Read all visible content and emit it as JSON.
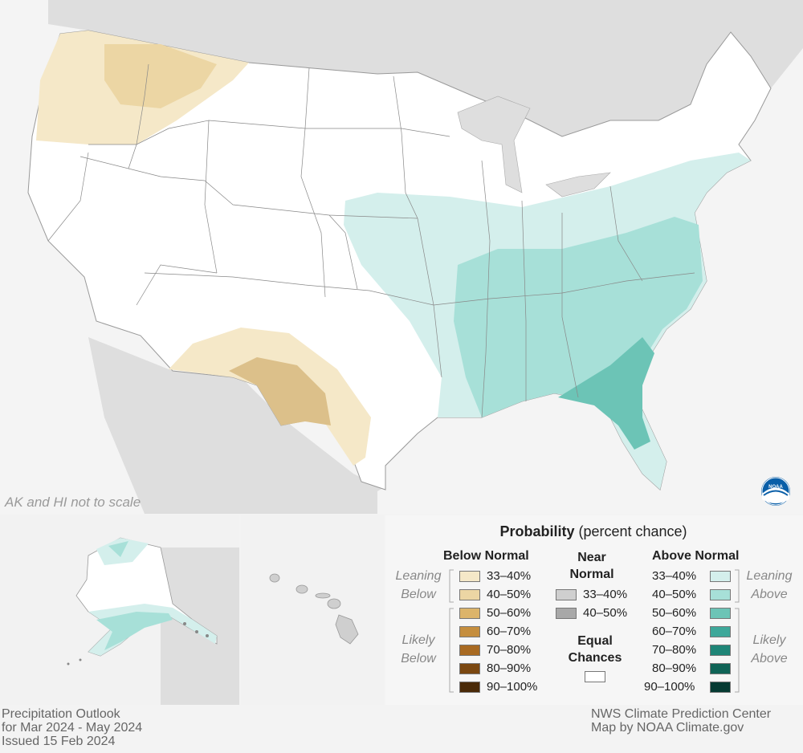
{
  "map": {
    "inset_note": "AK and HI not to scale",
    "logo_text": "NOAA"
  },
  "legend": {
    "title_bold": "Probability",
    "title_rest": " (percent chance)",
    "below": {
      "header": "Below Normal",
      "leaning_label": [
        "Leaning",
        "Below"
      ],
      "likely_label": [
        "Likely",
        "Below"
      ],
      "items": [
        {
          "label": "33–40%",
          "color": "#f5e8c8"
        },
        {
          "label": "40–50%",
          "color": "#ecd6a4"
        },
        {
          "label": "50–60%",
          "color": "#dcb46a"
        },
        {
          "label": "60–70%",
          "color": "#c58e3e"
        },
        {
          "label": "70–80%",
          "color": "#a86a22"
        },
        {
          "label": "80–90%",
          "color": "#7a4710"
        },
        {
          "label": "90–100%",
          "color": "#4a2a08"
        }
      ]
    },
    "near": {
      "header": [
        "Near",
        "Normal"
      ],
      "items": [
        {
          "label": "33–40%",
          "color": "#cfcfcf"
        },
        {
          "label": "40–50%",
          "color": "#a8a8a8"
        }
      ]
    },
    "equal": {
      "header": [
        "Equal",
        "Chances"
      ],
      "color": "#ffffff"
    },
    "above": {
      "header": "Above Normal",
      "leaning_label": [
        "Leaning",
        "Above"
      ],
      "likely_label": [
        "Likely",
        "Above"
      ],
      "items": [
        {
          "label": "33–40%",
          "color": "#d4efec"
        },
        {
          "label": "40–50%",
          "color": "#a7e0d8"
        },
        {
          "label": "50–60%",
          "color": "#6cc4b6"
        },
        {
          "label": "60–70%",
          "color": "#3ea89a"
        },
        {
          "label": "70–80%",
          "color": "#1f8577"
        },
        {
          "label": "80–90%",
          "color": "#0f6356"
        },
        {
          "label": "90–100%",
          "color": "#063b33"
        }
      ]
    }
  },
  "footer": {
    "left": [
      "Precipitation Outlook",
      "for Mar 2024 - May 2024",
      "Issued 15 Feb 2024"
    ],
    "right": [
      "NWS Climate Prediction Center",
      "Map by NOAA Climate.gov"
    ]
  }
}
